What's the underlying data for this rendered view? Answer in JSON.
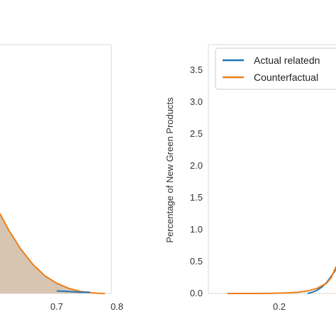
{
  "chart_data": [
    {
      "type": "area",
      "xlim": [
        0.6,
        0.8
      ],
      "ylim": [
        0,
        3.9
      ],
      "x_ticks": [
        "0.7",
        "0.8"
      ],
      "grid": false,
      "series": [
        {
          "color": "#ed7d1a",
          "fill": "#d8c5b1",
          "x": [
            0.6,
            0.62,
            0.64,
            0.66,
            0.68,
            0.7,
            0.72,
            0.74,
            0.76,
            0.77,
            0.78
          ],
          "y": [
            1.35,
            1.0,
            0.7,
            0.46,
            0.28,
            0.16,
            0.08,
            0.03,
            0.01,
            0.003,
            0.0
          ]
        },
        {
          "color": "#1f77b4",
          "x": [
            0.7,
            0.72,
            0.74,
            0.755
          ],
          "y": [
            0.04,
            0.03,
            0.02,
            0.02
          ]
        }
      ]
    },
    {
      "type": "line",
      "xlim": [
        0.05,
        0.32
      ],
      "ylim": [
        0,
        3.9
      ],
      "x_ticks": [
        "0.2"
      ],
      "y_ticks": [
        "0.0",
        "0.5",
        "1.0",
        "1.5",
        "2.0",
        "2.5",
        "3.0",
        "3.5"
      ],
      "ylabel": "Percentage of New Green Products",
      "legend": "top-left",
      "grid": false,
      "series": [
        {
          "name": "Actual relatedn",
          "color": "#1f77b4",
          "x": [
            0.26,
            0.27,
            0.28,
            0.29,
            0.3,
            0.31,
            0.32
          ],
          "y": [
            0.0,
            0.02,
            0.05,
            0.1,
            0.17,
            0.27,
            0.38
          ]
        },
        {
          "name": "Counterfactual",
          "color": "#ed7d1a",
          "x": [
            0.09,
            0.12,
            0.15,
            0.18,
            0.2,
            0.22,
            0.24,
            0.26,
            0.28,
            0.3,
            0.31,
            0.32
          ],
          "y": [
            0.0,
            0.0,
            0.0,
            0.002,
            0.005,
            0.01,
            0.02,
            0.04,
            0.08,
            0.16,
            0.25,
            0.42
          ]
        }
      ]
    }
  ]
}
